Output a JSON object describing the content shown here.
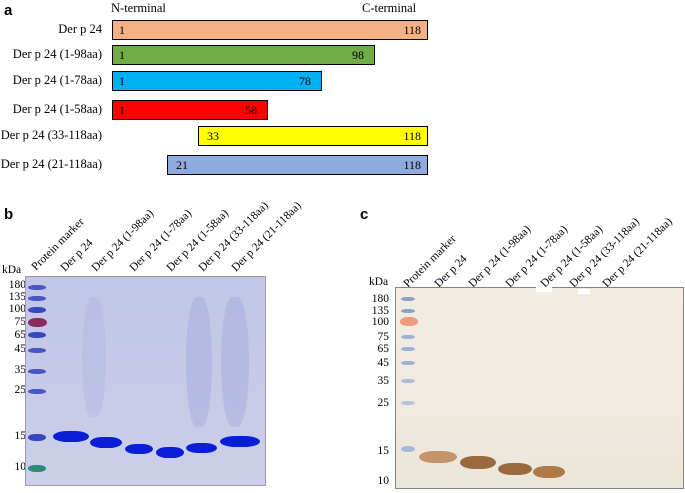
{
  "panel_a": {
    "letter": "a",
    "n_terminal": "N-terminal",
    "c_terminal": "C-terminal",
    "constructs": [
      {
        "label": "Der p 24",
        "start": "1",
        "end": "118",
        "color": "#f4b183"
      },
      {
        "label": "Der p 24 (1-98aa)",
        "start": "1",
        "end": "98",
        "color": "#70ad47"
      },
      {
        "label": "Der p 24 (1-78aa)",
        "start": "1",
        "end": "78",
        "color": "#00b0f0"
      },
      {
        "label": "Der p 24 (1-58aa)",
        "start": "1",
        "end": "58",
        "color": "#ff0000"
      },
      {
        "label": "Der p 24 (33-118aa)",
        "start": "33",
        "end": "118",
        "color": "#ffff00"
      },
      {
        "label": "Der p 24 (21-118aa)",
        "start": "21",
        "end": "118",
        "color": "#8faadc"
      }
    ]
  },
  "panel_b": {
    "letter": "b",
    "kda_label": "kDa",
    "markers": [
      "180",
      "135",
      "100",
      "75",
      "65",
      "45",
      "35",
      "25",
      "15",
      "10"
    ],
    "lanes": [
      "Protein marker",
      "Der p 24",
      "Der p 24 (1-98aa)",
      "Der p 24 (1-78aa)",
      "Der p 24 (1-58aa)",
      "Der p 24 (33-118aa)",
      "Der p 24 (21-118aa)"
    ]
  },
  "panel_c": {
    "letter": "c",
    "kda_label": "kDa",
    "markers": [
      "180",
      "135",
      "100",
      "75",
      "65",
      "45",
      "35",
      "25",
      "15",
      "10"
    ],
    "lanes": [
      "Protein marker",
      "Der p 24",
      "Der p 24 (1-98aa)",
      "Der p 24 (1-78aa)",
      "Der p 24 (1-58aa)",
      "Der p 24 (33-118aa)",
      "Der p 24 (21-118aa)"
    ]
  }
}
